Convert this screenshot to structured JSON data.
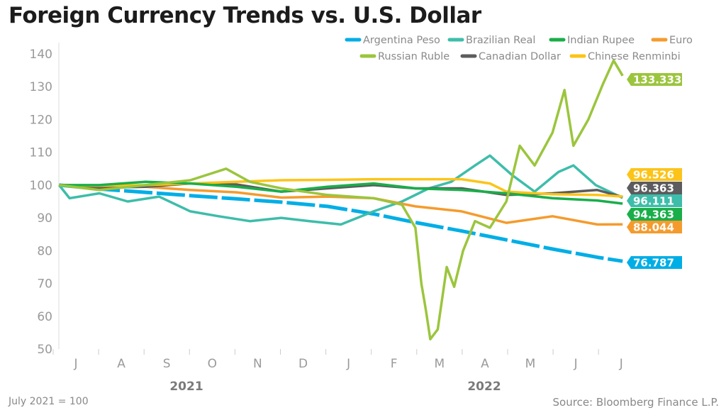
{
  "title": "Foreign Currency Trends vs. U.S. Dollar",
  "note": "July 2021 = 100",
  "source": "Source: Bloomberg Finance L.P.",
  "chart_data": {
    "type": "line",
    "title": "Foreign Currency Trends vs. U.S. Dollar",
    "ylim": [
      50,
      140
    ],
    "yticks": [
      50,
      60,
      70,
      80,
      90,
      100,
      110,
      120,
      130,
      140
    ],
    "xlim": [
      "2021-07-01",
      "2022-07-31"
    ],
    "xtick_labels": [
      "J",
      "A",
      "S",
      "O",
      "N",
      "D",
      "J",
      "F",
      "M",
      "A",
      "M",
      "J",
      "J"
    ],
    "year_labels": [
      "2021",
      "2022"
    ],
    "legend_placement": "top-right",
    "grid": false,
    "series": [
      {
        "name": "Argentina Peso",
        "color": "#00aee6",
        "end_label": "76.787",
        "x": [
          "2021-07-05",
          "2021-08-01",
          "2021-09-01",
          "2021-10-01",
          "2021-11-01",
          "2021-12-01",
          "2022-01-01",
          "2022-02-01",
          "2022-03-01",
          "2022-04-01",
          "2022-05-01",
          "2022-06-01",
          "2022-07-01",
          "2022-07-18"
        ],
        "y": [
          100,
          98.8,
          97.8,
          96.8,
          95.8,
          94.8,
          93.5,
          91.2,
          88.6,
          86,
          83.3,
          80.5,
          78,
          76.787
        ]
      },
      {
        "name": "Brazilian Real",
        "color": "#3dbdaa",
        "end_label": "96.111",
        "x": [
          "2021-07-05",
          "2021-07-12",
          "2021-08-01",
          "2021-08-20",
          "2021-09-10",
          "2021-10-01",
          "2021-10-20",
          "2021-11-10",
          "2021-12-01",
          "2021-12-20",
          "2022-01-10",
          "2022-02-01",
          "2022-02-20",
          "2022-03-10",
          "2022-03-25",
          "2022-04-10",
          "2022-04-20",
          "2022-05-05",
          "2022-05-20",
          "2022-06-05",
          "2022-06-15",
          "2022-06-30",
          "2022-07-18"
        ],
        "y": [
          100,
          96,
          97.5,
          95,
          96.5,
          92,
          90.5,
          89,
          90,
          89,
          88,
          92,
          95,
          99,
          101,
          106,
          109,
          103,
          98,
          104,
          106,
          100,
          96.111
        ]
      },
      {
        "name": "Indian Rupee",
        "color": "#1aae4a",
        "end_label": "94.363",
        "x": [
          "2021-07-05",
          "2021-08-01",
          "2021-09-01",
          "2021-10-01",
          "2021-11-01",
          "2021-12-01",
          "2022-01-01",
          "2022-02-01",
          "2022-03-01",
          "2022-04-01",
          "2022-05-01",
          "2022-06-01",
          "2022-07-01",
          "2022-07-18"
        ],
        "y": [
          100,
          100,
          101,
          100.5,
          99.5,
          98,
          99.5,
          100.5,
          99,
          98.5,
          97.5,
          96,
          95.3,
          94.363
        ]
      },
      {
        "name": "Euro",
        "color": "#f59b2d",
        "end_label": "88.044",
        "x": [
          "2021-07-05",
          "2021-08-01",
          "2021-09-01",
          "2021-10-01",
          "2021-11-01",
          "2021-12-01",
          "2022-01-01",
          "2022-02-01",
          "2022-03-01",
          "2022-04-01",
          "2022-05-01",
          "2022-06-01",
          "2022-07-01",
          "2022-07-18"
        ],
        "y": [
          100,
          99.5,
          99.5,
          98.5,
          97.8,
          96.2,
          96.5,
          96,
          93.5,
          92,
          88.5,
          90.5,
          88,
          88.044
        ]
      },
      {
        "name": "Russian Ruble",
        "color": "#9bc53d",
        "end_label": "133.333",
        "x": [
          "2021-07-05",
          "2021-08-01",
          "2021-09-01",
          "2021-10-01",
          "2021-10-25",
          "2021-11-10",
          "2021-12-01",
          "2022-01-01",
          "2022-02-01",
          "2022-02-20",
          "2022-03-01",
          "2022-03-05",
          "2022-03-08",
          "2022-03-11",
          "2022-03-16",
          "2022-03-22",
          "2022-03-27",
          "2022-04-02",
          "2022-04-10",
          "2022-04-20",
          "2022-05-01",
          "2022-05-10",
          "2022-05-20",
          "2022-06-01",
          "2022-06-09",
          "2022-06-15",
          "2022-06-25",
          "2022-07-05",
          "2022-07-12",
          "2022-07-18"
        ],
        "y": [
          100,
          98.5,
          100,
          101.5,
          105,
          101,
          99,
          97,
          96,
          94,
          87,
          70,
          62,
          53,
          56,
          75,
          69,
          80,
          89,
          87,
          95,
          112,
          106,
          116,
          129,
          112,
          120,
          131,
          138,
          133.333
        ]
      },
      {
        "name": "Canadian Dollar",
        "color": "#5c5c5e",
        "end_label": "96.363",
        "x": [
          "2021-07-05",
          "2021-08-01",
          "2021-09-01",
          "2021-10-01",
          "2021-11-01",
          "2021-12-01",
          "2022-01-01",
          "2022-02-01",
          "2022-03-01",
          "2022-04-01",
          "2022-05-01",
          "2022-06-01",
          "2022-07-01",
          "2022-07-18"
        ],
        "y": [
          100,
          99.2,
          99.5,
          100.5,
          100.2,
          98,
          99,
          100,
          99,
          99,
          97,
          97.5,
          98.5,
          96.363
        ]
      },
      {
        "name": "Chinese Renminbi",
        "color": "#fcc419",
        "end_label": "96.526",
        "x": [
          "2021-07-05",
          "2021-08-01",
          "2021-09-01",
          "2021-10-01",
          "2021-11-01",
          "2021-12-01",
          "2022-01-01",
          "2022-02-01",
          "2022-03-01",
          "2022-04-01",
          "2022-04-20",
          "2022-05-01",
          "2022-06-01",
          "2022-07-01",
          "2022-07-18"
        ],
        "y": [
          100,
          99.8,
          100,
          100.5,
          101,
          101.5,
          101.6,
          101.8,
          101.8,
          101.8,
          100.5,
          98,
          97.2,
          97,
          96.526
        ]
      }
    ]
  }
}
